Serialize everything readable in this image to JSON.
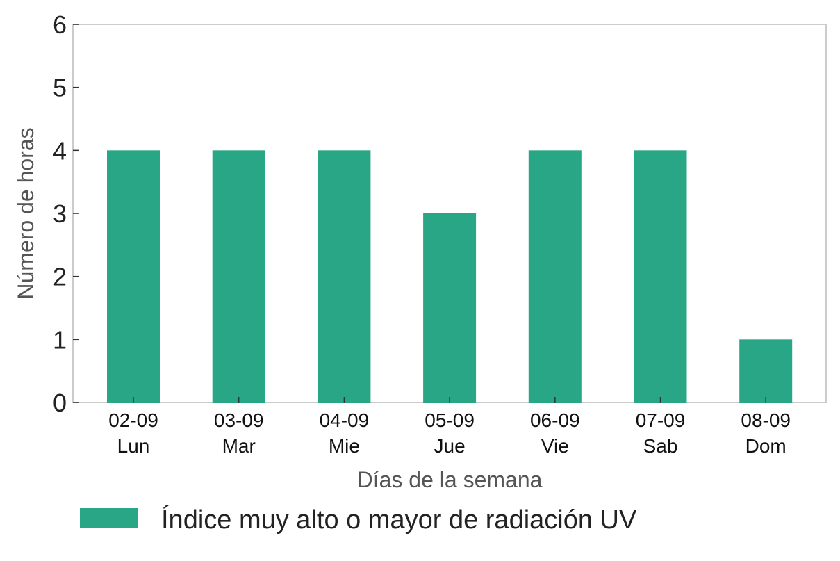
{
  "chart_data": {
    "type": "bar",
    "categories": [
      {
        "date": "02-09",
        "day": "Lun"
      },
      {
        "date": "03-09",
        "day": "Mar"
      },
      {
        "date": "04-09",
        "day": "Mie"
      },
      {
        "date": "05-09",
        "day": "Jue"
      },
      {
        "date": "06-09",
        "day": "Vie"
      },
      {
        "date": "07-09",
        "day": "Sab"
      },
      {
        "date": "08-09",
        "day": "Dom"
      }
    ],
    "series": [
      {
        "name": "Índice muy alto o mayor de radiación UV",
        "values": [
          4,
          4,
          4,
          3,
          4,
          4,
          1
        ],
        "color": "#29a686"
      }
    ],
    "title": "",
    "xlabel": "Días de la semana",
    "ylabel": "Número de horas",
    "ylim": [
      0,
      6
    ],
    "yticks": [
      "0",
      "1",
      "2",
      "3",
      "4",
      "5",
      "6"
    ],
    "grid": false,
    "legend": "bottom"
  }
}
